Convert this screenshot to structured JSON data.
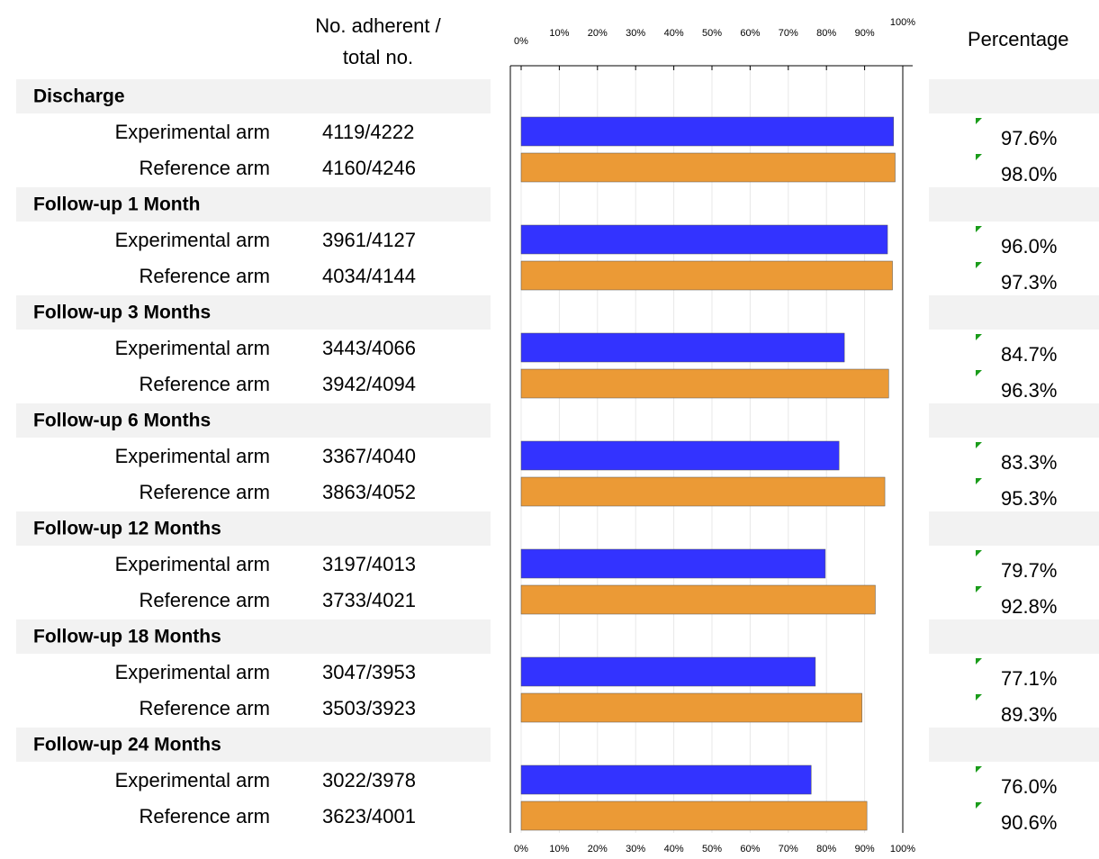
{
  "chart_data": {
    "type": "bar",
    "orientation": "horizontal",
    "header_counts": [
      "No. adherent /",
      "total no."
    ],
    "header_percentage": "Percentage",
    "categories": [
      "Discharge",
      "Follow-up 1 Month",
      "Follow-up 3 Months",
      "Follow-up 6 Months",
      "Follow-up 12 Months",
      "Follow-up 18 Months",
      "Follow-up 24 Months"
    ],
    "series": [
      {
        "name": "Experimental arm",
        "color": "#3333ff",
        "counts": [
          "4119/4222",
          "3961/4127",
          "3443/4066",
          "3367/4040",
          "3197/4013",
          "3047/3953",
          "3022/3978"
        ],
        "values": [
          97.6,
          96.0,
          84.7,
          83.3,
          79.7,
          77.1,
          76.0
        ],
        "value_labels": [
          "97.6%",
          "96.0%",
          "84.7%",
          "83.3%",
          "79.7%",
          "77.1%",
          "76.0%"
        ]
      },
      {
        "name": "Reference arm",
        "color": "#eb9a36",
        "counts": [
          "4160/4246",
          "4034/4144",
          "3942/4094",
          "3863/4052",
          "3733/4021",
          "3503/3923",
          "3623/4001"
        ],
        "values": [
          98.0,
          97.3,
          96.3,
          95.3,
          92.8,
          89.3,
          90.6
        ],
        "value_labels": [
          "98.0%",
          "97.3%",
          "96.3%",
          "95.3%",
          "92.8%",
          "89.3%",
          "90.6%"
        ]
      }
    ],
    "xlim": [
      0,
      100
    ],
    "xticks": [
      {
        "value": 0,
        "label": "0%"
      },
      {
        "value": 10,
        "label": "10%"
      },
      {
        "value": 20,
        "label": "20%"
      },
      {
        "value": 30,
        "label": "30%"
      },
      {
        "value": 40,
        "label": "40%"
      },
      {
        "value": 50,
        "label": "50%"
      },
      {
        "value": 60,
        "label": "60%"
      },
      {
        "value": 70,
        "label": "70%"
      },
      {
        "value": 80,
        "label": "80%"
      },
      {
        "value": 90,
        "label": "90%"
      },
      {
        "value": 100,
        "label": "100%"
      }
    ],
    "grid": true
  }
}
